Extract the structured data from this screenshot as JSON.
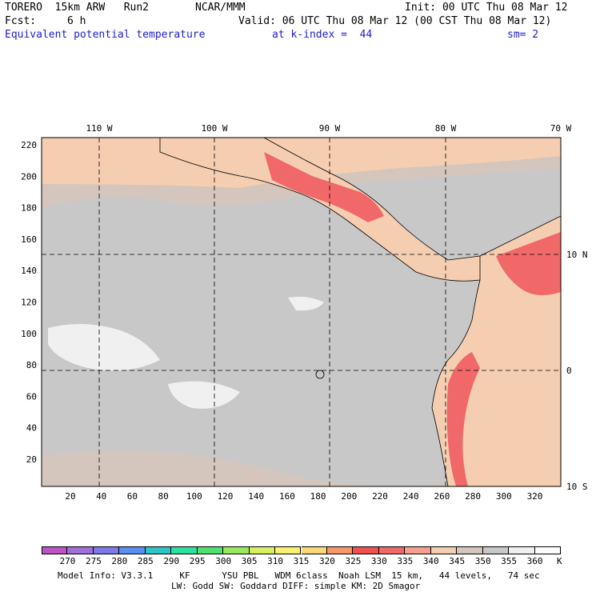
{
  "header": {
    "model_run": "TORERO  15km ARW   Run2",
    "org": "NCAR/MMM",
    "init": "Init: 00 UTC Thu 08 Mar 12",
    "fcst_label": "Fcst:",
    "fcst_value": "6 h",
    "valid": "Valid: 06 UTC Thu 08 Mar 12 (00 CST Thu 08 Mar 12)",
    "field": "Equivalent potential temperature",
    "level": "at k-index =  44",
    "smoothing": "sm= 2"
  },
  "map": {
    "lon_labels": [
      "110 W",
      "100 W",
      "90 W",
      "80 W",
      "70 W"
    ],
    "lat_labels": [
      "10 N",
      "0",
      "10 S"
    ],
    "y_ticks": [
      "220",
      "200",
      "180",
      "160",
      "140",
      "120",
      "100",
      "80",
      "60",
      "40",
      "20"
    ],
    "x_ticks": [
      "20",
      "40",
      "60",
      "80",
      "100",
      "120",
      "140",
      "160",
      "180",
      "200",
      "220",
      "240",
      "260",
      "280",
      "300",
      "320"
    ]
  },
  "colorbar": {
    "labels": [
      "270",
      "275",
      "280",
      "285",
      "290",
      "295",
      "300",
      "305",
      "310",
      "315",
      "320",
      "325",
      "330",
      "335",
      "340",
      "345",
      "350",
      "355",
      "360"
    ],
    "unit": "K",
    "colors": [
      "#c052c8",
      "#a070d8",
      "#7f78e8",
      "#5a8ef0",
      "#2ec4c4",
      "#2ee0a0",
      "#50e070",
      "#98e860",
      "#d8f060",
      "#f8f070",
      "#f8d878",
      "#f89868",
      "#f05050",
      "#f06868",
      "#f8a090",
      "#f5cdb0",
      "#d4c6bc",
      "#c8c8c8",
      "#f0f0f0",
      "#ffffff"
    ]
  },
  "map_colors": {
    "ocean": "#c8c8c8",
    "warm_sea": "#d4c6bc",
    "land_peach": "#f5cdb0",
    "hot": "#f06868",
    "hotter": "#f05050",
    "cool_patch": "#f0f0f0"
  },
  "footer": {
    "line1": "Model Info: V3.3.1     KF      YSU PBL   WDM 6class  Noah LSM  15 km,   44 levels,   74 sec",
    "line2": "LW: Godd SW: Goddard DIFF: simple KM: 2D Smagor"
  }
}
